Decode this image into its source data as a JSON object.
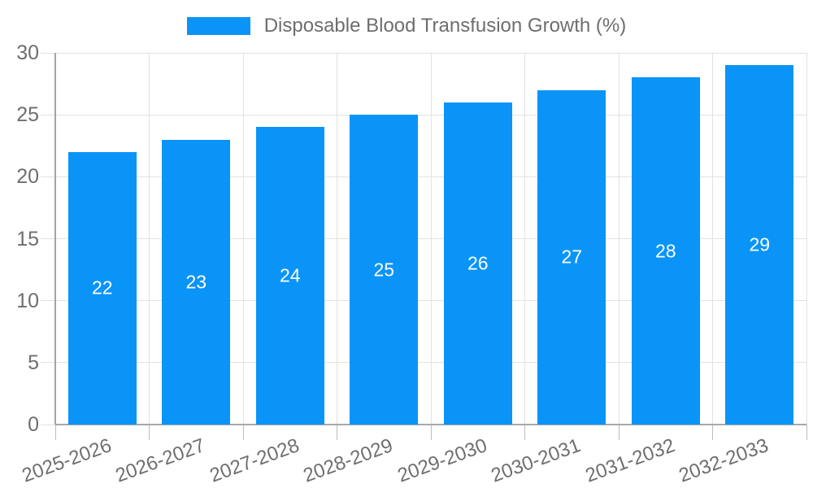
{
  "legend": {
    "label": "Disposable Blood Transfusion Growth (%)"
  },
  "chart_data": {
    "type": "bar",
    "title": "Disposable Blood Transfusion Growth (%)",
    "categories": [
      "2025-2026",
      "2026-2027",
      "2027-2028",
      "2028-2029",
      "2029-2030",
      "2030-2031",
      "2031-2032",
      "2032-2033"
    ],
    "values": [
      22,
      23,
      24,
      25,
      26,
      27,
      28,
      29
    ],
    "value_labels_shown": true,
    "xlabel": "",
    "ylabel": "",
    "ylim": [
      0,
      30
    ],
    "yticks": [
      0,
      5,
      10,
      15,
      20,
      25,
      30
    ],
    "grid": "horizontal-and-vertical",
    "legend_position": "top-center",
    "x_tick_label_rotation_deg": -20
  },
  "colors": {
    "bar": "#0a94f8",
    "label_text": "#6e6e6e",
    "value_text": "#ffffff",
    "axis_line": "#a8a8a8",
    "gridline": "#e2e2e2",
    "tick": "#bdbdbd",
    "background": "#ffffff"
  }
}
